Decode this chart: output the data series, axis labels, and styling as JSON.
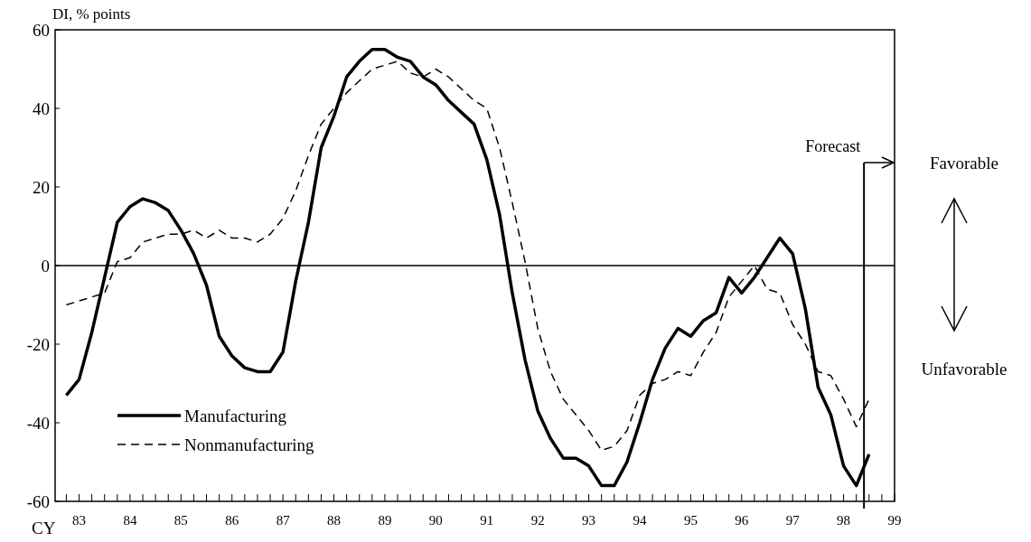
{
  "chart_data": {
    "type": "line",
    "ylabel": "DI, % points",
    "xlabel": "CY",
    "x": [
      82.75,
      83,
      83.25,
      83.5,
      83.75,
      84,
      84.25,
      84.5,
      84.75,
      85,
      85.25,
      85.5,
      85.75,
      86,
      86.25,
      86.5,
      86.75,
      87,
      87.25,
      87.5,
      87.75,
      88,
      88.25,
      88.5,
      88.75,
      89,
      89.25,
      89.5,
      89.75,
      90,
      90.25,
      90.5,
      90.75,
      91,
      91.25,
      91.5,
      91.75,
      92,
      92.25,
      92.5,
      92.75,
      93,
      93.25,
      93.5,
      93.75,
      94,
      94.25,
      94.5,
      94.75,
      95,
      95.25,
      95.5,
      95.75,
      96,
      96.25,
      96.5,
      96.75,
      97,
      97.25,
      97.5,
      97.75,
      98,
      98.25,
      98.5
    ],
    "series": [
      {
        "name": "Manufacturing",
        "color": "#000000",
        "line_style": "solid",
        "values": [
          -33,
          -29,
          -17,
          -3,
          11,
          15,
          17,
          16,
          14,
          9,
          3,
          -5,
          -18,
          -23,
          -26,
          -27,
          -27,
          -22,
          -4,
          11,
          30,
          38,
          48,
          52,
          55,
          55,
          53,
          52,
          48,
          46,
          42,
          39,
          36,
          27,
          13,
          -7,
          -24,
          -37,
          -44,
          -49,
          -49,
          -51,
          -56,
          -56,
          -50,
          -40,
          -29,
          -21,
          -16,
          -18,
          -14,
          -12,
          -3,
          -7,
          -3,
          2,
          7,
          3,
          -11,
          -31,
          -38,
          -51,
          -56,
          -48
        ]
      },
      {
        "name": "Nonmanufacturing",
        "color": "#000000",
        "line_style": "dashed",
        "values": [
          -10,
          -9,
          -8,
          -7,
          1,
          2,
          6,
          7,
          8,
          8,
          9,
          7,
          9,
          7,
          7,
          6,
          8,
          12,
          19,
          28,
          36,
          40,
          44,
          47,
          50,
          51,
          52,
          49,
          48,
          50,
          48,
          45,
          42,
          40,
          30,
          16,
          1,
          -16,
          -27,
          -34,
          -38,
          -42,
          -47,
          -46,
          -42,
          -33,
          -30,
          -29,
          -27,
          -28,
          -22,
          -17,
          -8,
          -4,
          0,
          -6,
          -7,
          -15,
          -20,
          -27,
          -28,
          -34,
          -41,
          -34
        ]
      }
    ],
    "xlim": [
      82.53,
      99
    ],
    "xticks": [
      {
        "value": 82.75,
        "label": null
      },
      83,
      {
        "value": 83.25,
        "label": null
      },
      {
        "value": 83.5,
        "label": null
      },
      {
        "value": 83.75,
        "label": null
      },
      84,
      {
        "value": 84.25,
        "label": null
      },
      {
        "value": 84.5,
        "label": null
      },
      {
        "value": 84.75,
        "label": null
      },
      85,
      {
        "value": 85.25,
        "label": null
      },
      {
        "value": 85.5,
        "label": null
      },
      {
        "value": 85.75,
        "label": null
      },
      86,
      {
        "value": 86.25,
        "label": null
      },
      {
        "value": 86.5,
        "label": null
      },
      {
        "value": 86.75,
        "label": null
      },
      87,
      {
        "value": 87.25,
        "label": null
      },
      {
        "value": 87.5,
        "label": null
      },
      {
        "value": 87.75,
        "label": null
      },
      88,
      {
        "value": 88.25,
        "label": null
      },
      {
        "value": 88.5,
        "label": null
      },
      {
        "value": 88.75,
        "label": null
      },
      89,
      {
        "value": 89.25,
        "label": null
      },
      {
        "value": 89.5,
        "label": null
      },
      {
        "value": 89.75,
        "label": null
      },
      90,
      {
        "value": 90.25,
        "label": null
      },
      {
        "value": 90.5,
        "label": null
      },
      {
        "value": 90.75,
        "label": null
      },
      91,
      {
        "value": 91.25,
        "label": null
      },
      {
        "value": 91.5,
        "label": null
      },
      {
        "value": 91.75,
        "label": null
      },
      92,
      {
        "value": 92.25,
        "label": null
      },
      {
        "value": 92.5,
        "label": null
      },
      {
        "value": 92.75,
        "label": null
      },
      93,
      {
        "value": 93.25,
        "label": null
      },
      {
        "value": 93.5,
        "label": null
      },
      {
        "value": 93.75,
        "label": null
      },
      94,
      {
        "value": 94.25,
        "label": null
      },
      {
        "value": 94.5,
        "label": null
      },
      {
        "value": 94.75,
        "label": null
      },
      95,
      {
        "value": 95.25,
        "label": null
      },
      {
        "value": 95.5,
        "label": null
      },
      {
        "value": 95.75,
        "label": null
      },
      96,
      {
        "value": 96.25,
        "label": null
      },
      {
        "value": 96.5,
        "label": null
      },
      {
        "value": 96.75,
        "label": null
      },
      97,
      {
        "value": 97.25,
        "label": null
      },
      {
        "value": 97.5,
        "label": null
      },
      {
        "value": 97.75,
        "label": null
      },
      98,
      {
        "value": 98.25,
        "label": null
      },
      {
        "value": 98.5,
        "label": null
      },
      {
        "value": 98.75,
        "label": null
      },
      99
    ],
    "ylim": [
      -60,
      60
    ],
    "yticks": [
      -60,
      -40,
      -20,
      0,
      20,
      40,
      60
    ],
    "ref_lines": [
      {
        "axis": "y",
        "value": 0,
        "label": null
      },
      {
        "axis": "x",
        "value": 98.4,
        "label": "Forecast"
      }
    ],
    "annotations": [
      "Favorable",
      "Unfavorable"
    ],
    "legend": "bottom left",
    "grid": false,
    "marker": "none"
  }
}
